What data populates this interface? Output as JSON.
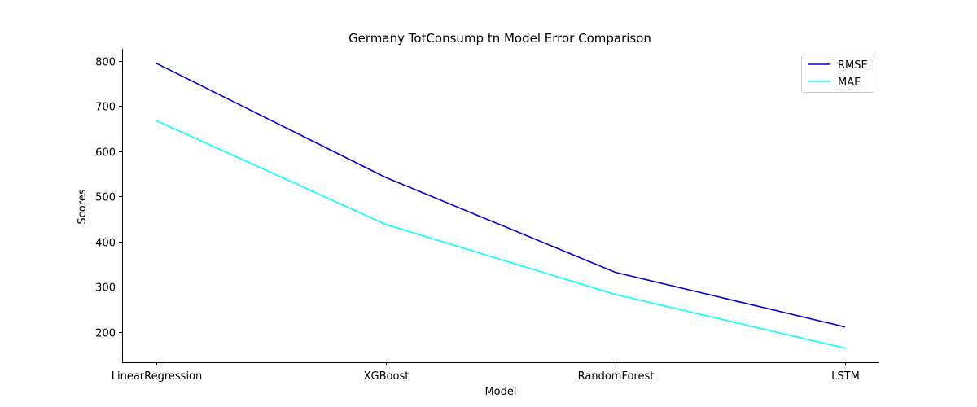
{
  "chart_data": {
    "type": "line",
    "title": "Germany TotConsump tn Model Error Comparison",
    "xlabel": "Model",
    "ylabel": "Scores",
    "categories": [
      "LinearRegression",
      "XGBoost",
      "RandomForest",
      "LSTM"
    ],
    "series": [
      {
        "name": "RMSE",
        "color": "#0000cd",
        "values": [
          795,
          542,
          332,
          211
        ]
      },
      {
        "name": "MAE",
        "color": "#00ffff",
        "values": [
          668,
          438,
          283,
          164
        ]
      }
    ],
    "ylim": [
      133,
      827
    ],
    "yticks": [
      200,
      300,
      400,
      500,
      600,
      700,
      800
    ],
    "grid": false,
    "legend_position": "top-right"
  }
}
